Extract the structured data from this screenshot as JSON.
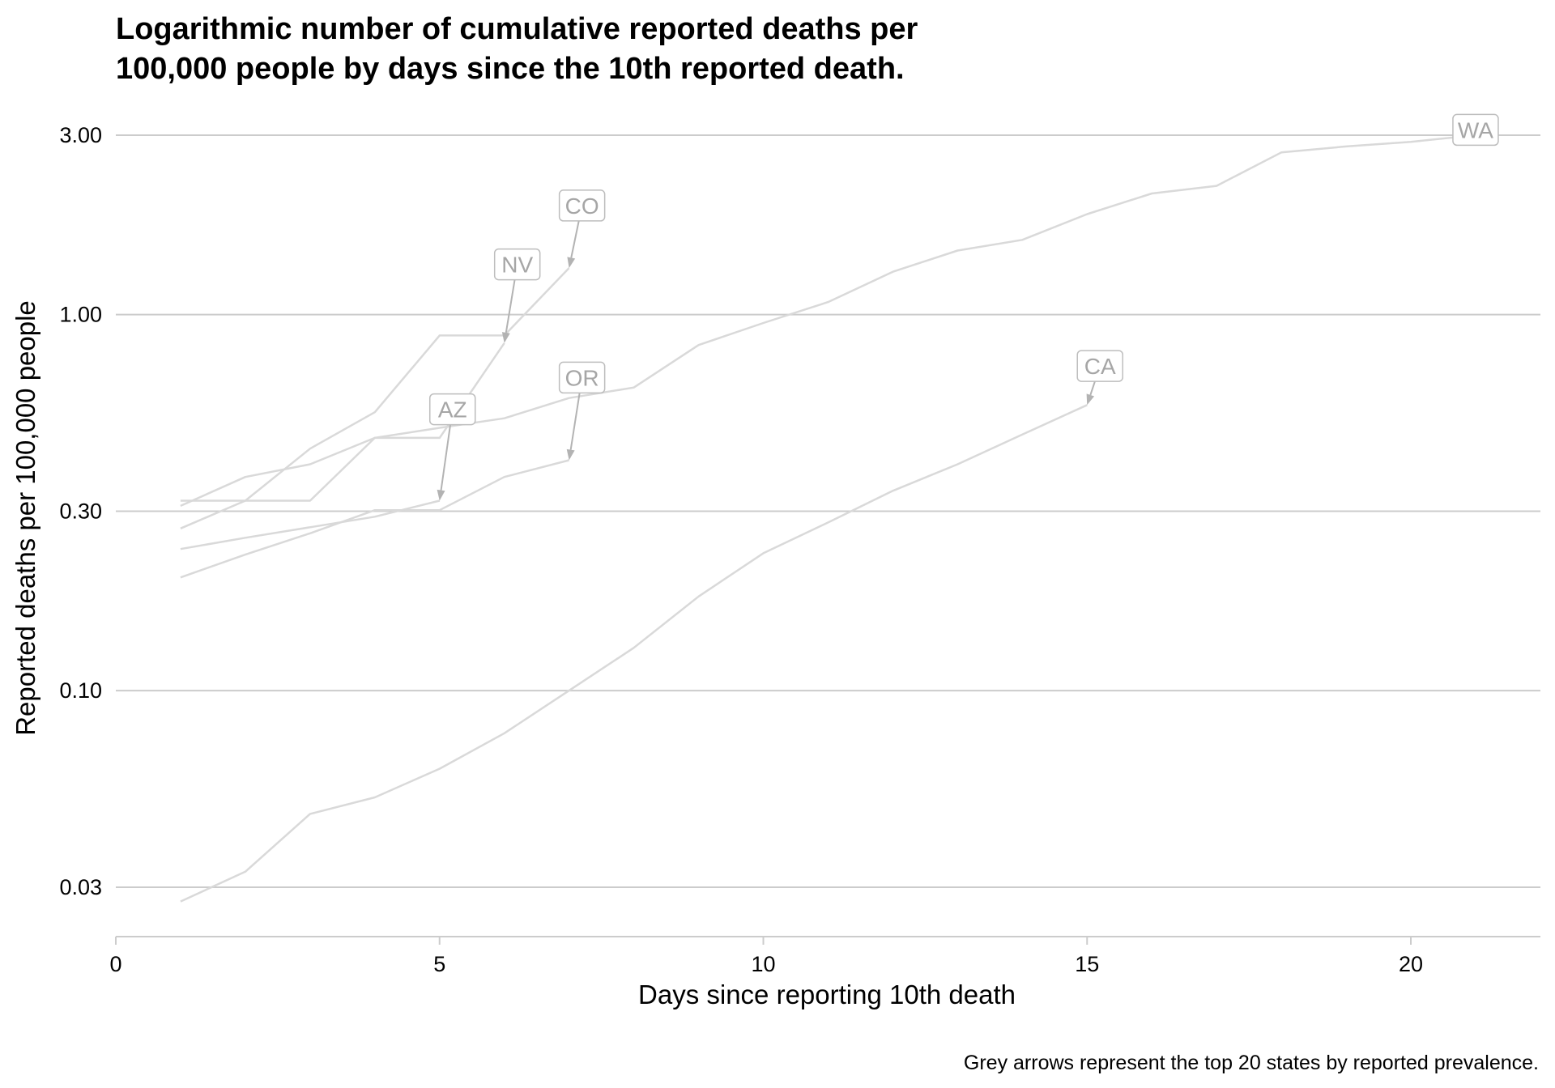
{
  "chart_data": {
    "type": "line",
    "title": [
      "Logarithmic number of cumulative reported deaths per",
      "100,000 people by days since the 10th reported death."
    ],
    "xlabel": "Days since reporting 10th death",
    "ylabel": "Reported deaths per 100,000 people",
    "caption": "Grey arrows represent the top 20 states by reported prevalence.",
    "xlim": [
      0,
      22
    ],
    "ylim": [
      0.022,
      3.7
    ],
    "yscale": "log",
    "x_ticks": [
      0,
      5,
      10,
      15,
      20
    ],
    "x_tick_labels": [
      "0",
      "5",
      "10",
      "15",
      "20"
    ],
    "y_ticks": [
      0.03,
      0.1,
      0.3,
      1.0,
      3.0
    ],
    "y_tick_labels": [
      "0.03",
      "0.10",
      "0.30",
      "1.00",
      "3.00"
    ],
    "grid": "horizontal-major",
    "legend": "none",
    "colors": {
      "series_line": "#d9d9d9",
      "arrow": "#b3b3b3",
      "label_text": "#a6a6a6",
      "label_border": "#bdbdbd",
      "gridline": "#cccccc",
      "axis_line": "#cccccc"
    },
    "series": [
      {
        "name": "WA",
        "x": [
          1,
          2,
          3,
          4,
          5,
          6,
          7,
          8,
          9,
          10,
          11,
          12,
          13,
          14,
          15,
          16,
          17,
          18,
          19,
          20,
          21
        ],
        "y": [
          0.31,
          0.37,
          0.4,
          0.47,
          0.5,
          0.53,
          0.6,
          0.64,
          0.83,
          0.95,
          1.08,
          1.3,
          1.48,
          1.58,
          1.85,
          2.1,
          2.2,
          2.7,
          2.8,
          2.88,
          3.0
        ],
        "arrow_from": [
          21,
          3.1
        ]
      },
      {
        "name": "CA",
        "x": [
          1,
          2,
          3,
          4,
          5,
          6,
          7,
          8,
          9,
          10,
          11,
          12,
          13,
          14,
          15
        ],
        "y": [
          0.0275,
          0.033,
          0.047,
          0.052,
          0.062,
          0.077,
          0.1,
          0.13,
          0.178,
          0.232,
          0.28,
          0.34,
          0.4,
          0.48,
          0.575
        ],
        "arrow_from": [
          15.2,
          0.73
        ]
      },
      {
        "name": "OR",
        "x": [
          1,
          2,
          3,
          4,
          5,
          6,
          7
        ],
        "y": [
          0.2,
          0.23,
          0.262,
          0.302,
          0.302,
          0.37,
          0.41
        ],
        "arrow_from": [
          7.2,
          0.68
        ]
      },
      {
        "name": "AZ",
        "x": [
          1,
          2,
          3,
          4,
          5
        ],
        "y": [
          0.238,
          0.255,
          0.272,
          0.29,
          0.32
        ],
        "arrow_from": [
          5.2,
          0.56
        ]
      },
      {
        "name": "NV",
        "x": [
          1,
          2,
          3,
          4,
          5,
          6
        ],
        "y": [
          0.32,
          0.32,
          0.32,
          0.47,
          0.47,
          0.84
        ],
        "arrow_from": [
          6.2,
          1.36
        ]
      },
      {
        "name": "CO",
        "x": [
          1,
          2,
          3,
          4,
          5,
          6,
          7
        ],
        "y": [
          0.27,
          0.32,
          0.44,
          0.55,
          0.88,
          0.88,
          1.33
        ],
        "arrow_from": [
          7.2,
          1.95
        ]
      }
    ]
  }
}
